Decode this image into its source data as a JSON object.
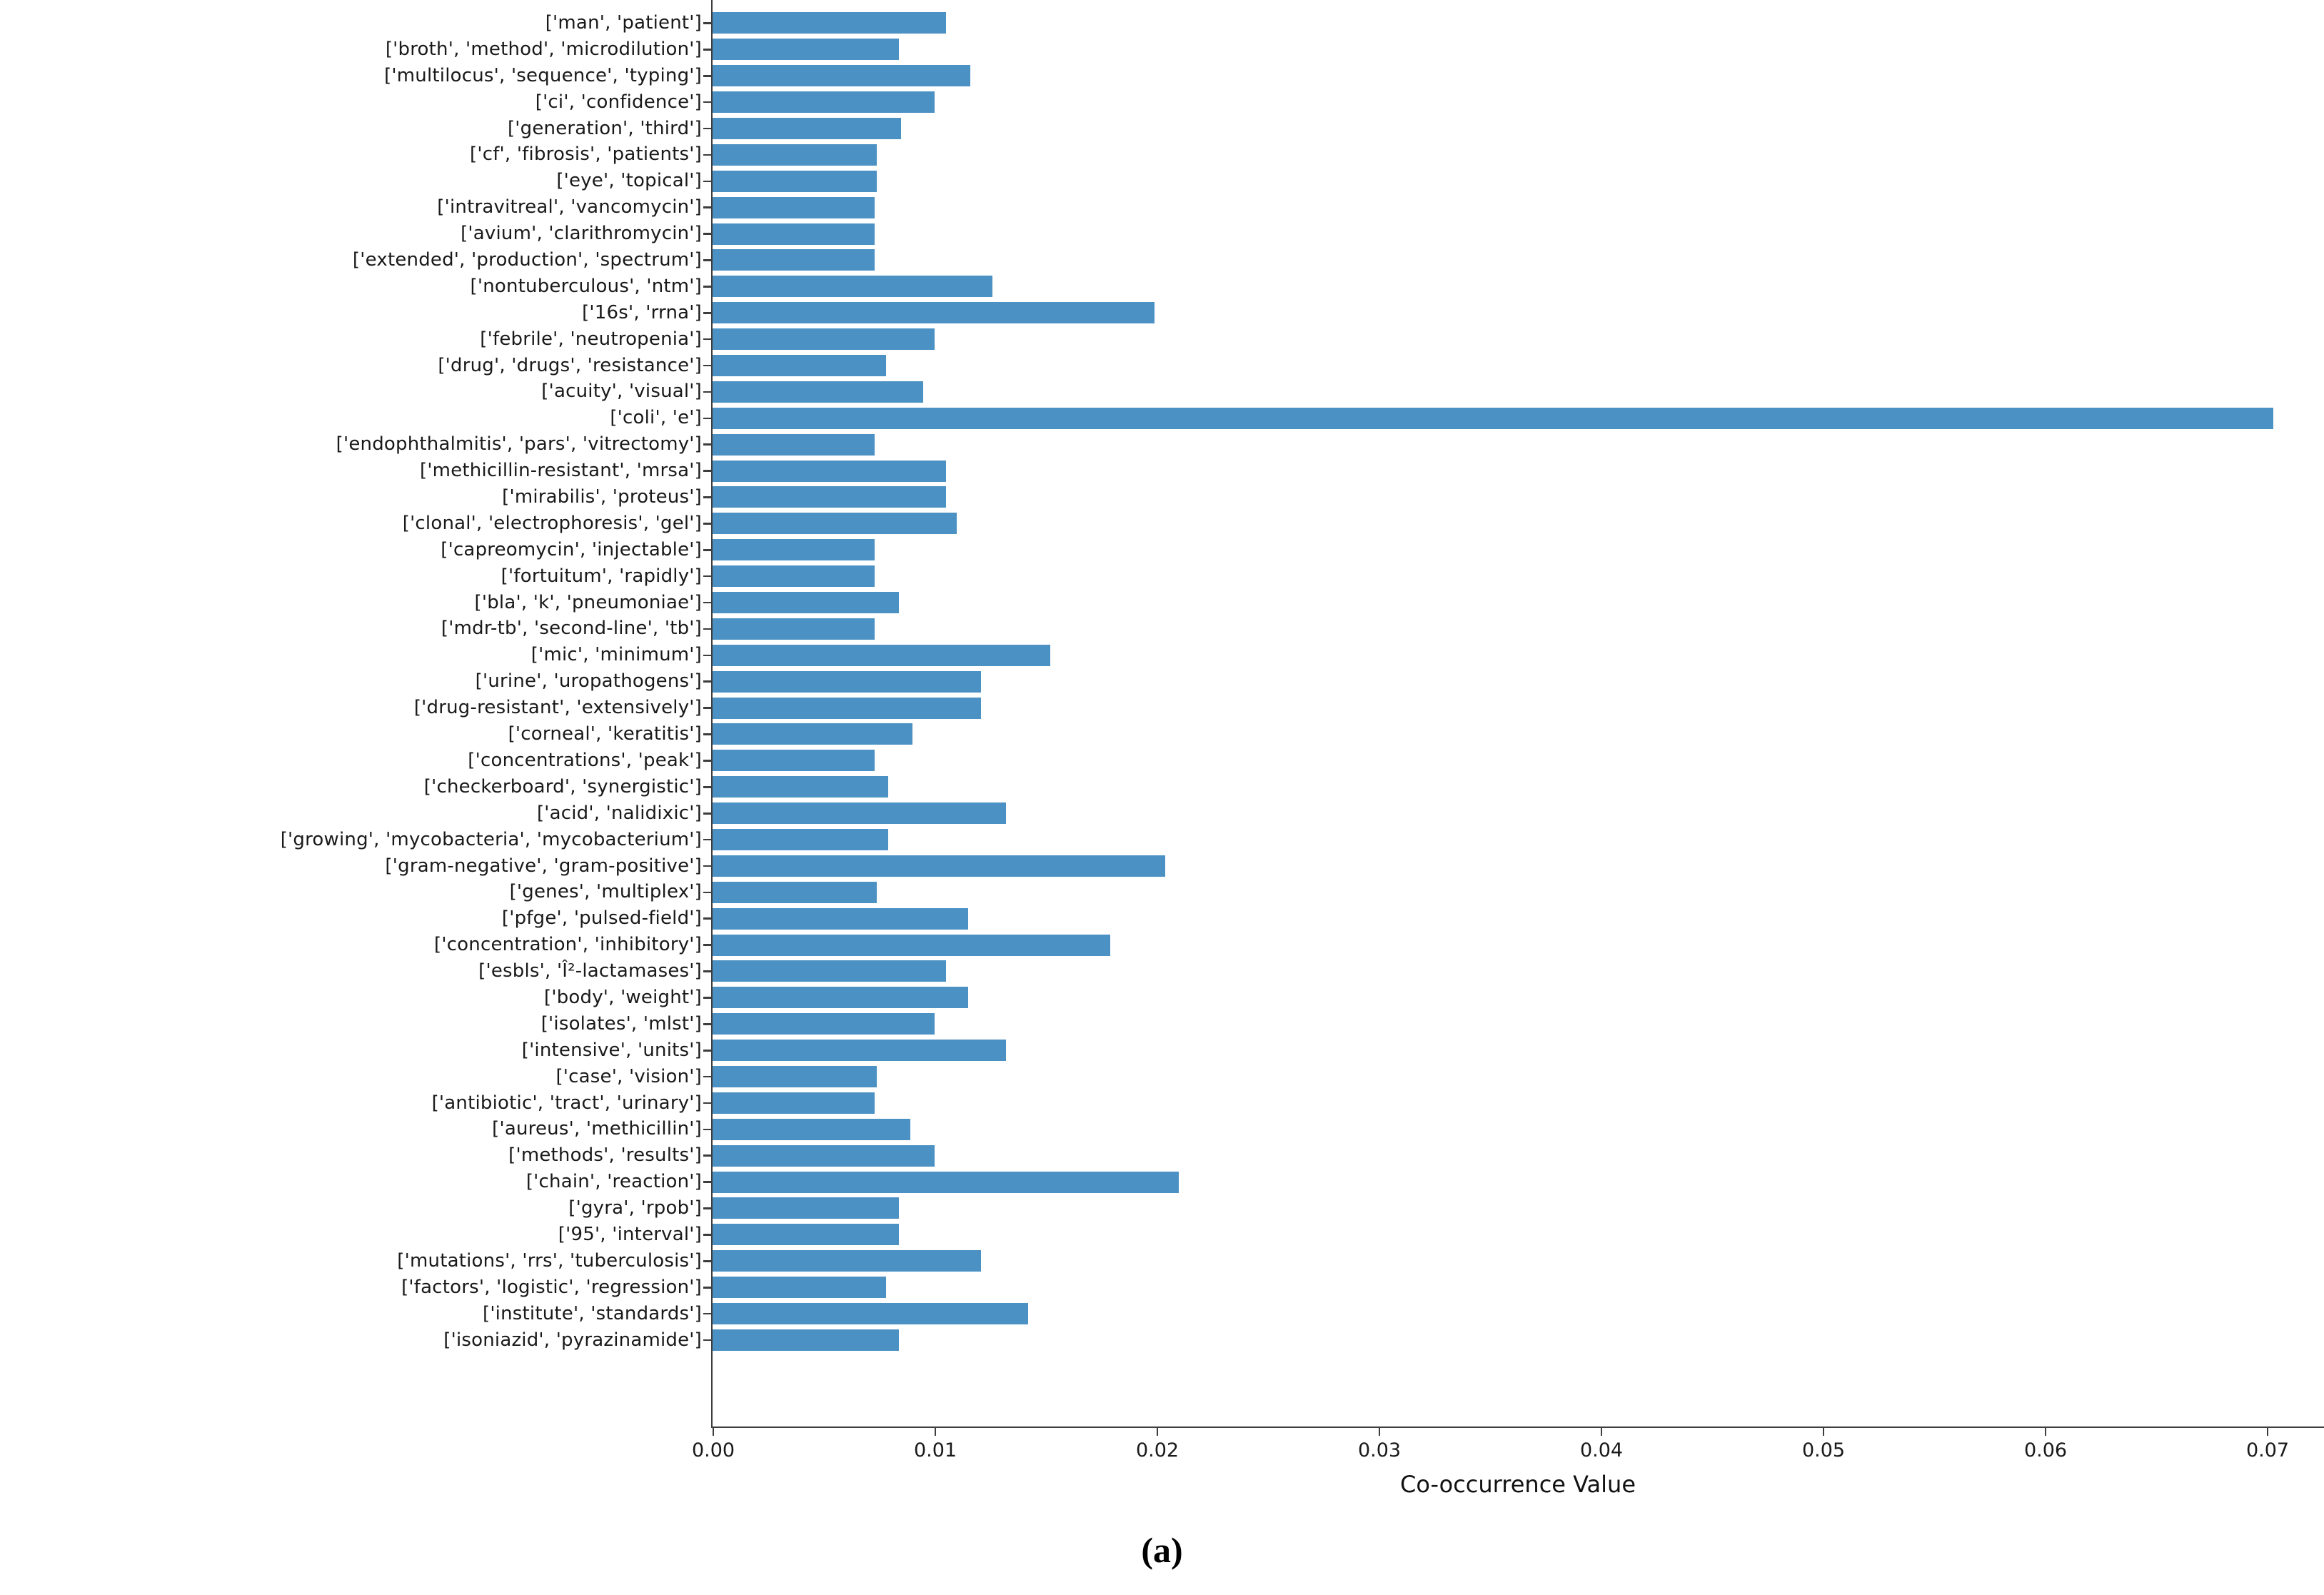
{
  "caption": "(a)",
  "chart_data": {
    "type": "bar",
    "orientation": "horizontal",
    "title": "",
    "xlabel": "Co-occurrence Value",
    "ylabel": "",
    "xlim": [
      0,
      0.0726
    ],
    "grid": false,
    "legend": null,
    "bar_color": "#4b91c3",
    "xtick_labels": [
      "0.00",
      "0.01",
      "0.02",
      "0.03",
      "0.04",
      "0.05",
      "0.06",
      "0.07"
    ],
    "xtick_values": [
      0.0,
      0.01,
      0.02,
      0.03,
      0.04,
      0.05,
      0.06,
      0.07
    ],
    "categories": [
      "['man', 'patient']",
      "['broth', 'method', 'microdilution']",
      "['multilocus', 'sequence', 'typing']",
      "['ci', 'confidence']",
      "['generation', 'third']",
      "['cf', 'fibrosis', 'patients']",
      "['eye', 'topical']",
      "['intravitreal', 'vancomycin']",
      "['avium', 'clarithromycin']",
      "['extended', 'production', 'spectrum']",
      "['nontuberculous', 'ntm']",
      "['16s', 'rrna']",
      "['febrile', 'neutropenia']",
      "['drug', 'drugs', 'resistance']",
      "['acuity', 'visual']",
      "['coli', 'e']",
      "['endophthalmitis', 'pars', 'vitrectomy']",
      "['methicillin-resistant', 'mrsa']",
      "['mirabilis', 'proteus']",
      "['clonal', 'electrophoresis', 'gel']",
      "['capreomycin', 'injectable']",
      "['fortuitum', 'rapidly']",
      "['bla', 'k', 'pneumoniae']",
      "['mdr-tb', 'second-line', 'tb']",
      "['mic', 'minimum']",
      "['urine', 'uropathogens']",
      "['drug-resistant', 'extensively']",
      "['corneal', 'keratitis']",
      "['concentrations', 'peak']",
      "['checkerboard', 'synergistic']",
      "['acid', 'nalidixic']",
      "['growing', 'mycobacteria', 'mycobacterium']",
      "['gram-negative', 'gram-positive']",
      "['genes', 'multiplex']",
      "['pfge', 'pulsed-field']",
      "['concentration', 'inhibitory']",
      "['esbls', 'Î²-lactamases']",
      "['body', 'weight']",
      "['isolates', 'mlst']",
      "['intensive', 'units']",
      "['case', 'vision']",
      "['antibiotic', 'tract', 'urinary']",
      "['aureus', 'methicillin']",
      "['methods', 'results']",
      "['chain', 'reaction']",
      "['gyra', 'rpob']",
      "['95', 'interval']",
      "['mutations', 'rrs', 'tuberculosis']",
      "['factors', 'logistic', 'regression']",
      "['institute', 'standards']",
      "['isoniazid', 'pyrazinamide']"
    ],
    "values": [
      0.0105,
      0.0084,
      0.0116,
      0.01,
      0.0085,
      0.0074,
      0.0074,
      0.0073,
      0.0073,
      0.0073,
      0.0126,
      0.0199,
      0.01,
      0.0078,
      0.0095,
      0.0703,
      0.0073,
      0.0105,
      0.0105,
      0.011,
      0.0073,
      0.0073,
      0.0084,
      0.0073,
      0.0152,
      0.0121,
      0.0121,
      0.009,
      0.0073,
      0.0079,
      0.0132,
      0.0079,
      0.0204,
      0.0074,
      0.0115,
      0.0179,
      0.0105,
      0.0115,
      0.01,
      0.0132,
      0.0074,
      0.0073,
      0.0089,
      0.01,
      0.021,
      0.0084,
      0.0084,
      0.0121,
      0.0078,
      0.0142,
      0.0084
    ]
  }
}
